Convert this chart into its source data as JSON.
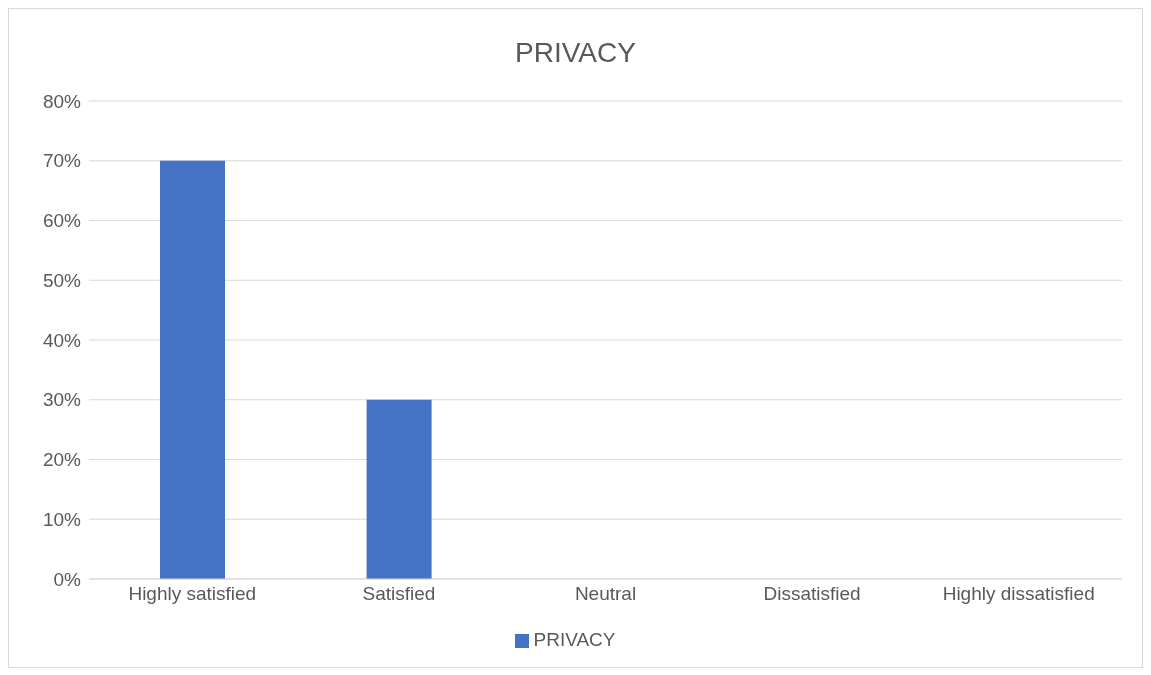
{
  "chart_data": {
    "type": "bar",
    "title": "PRIVACY",
    "categories": [
      "Highly satisfied",
      "Satisfied",
      "Neutral",
      "Dissatisfied",
      "Highly dissatisfied"
    ],
    "series": [
      {
        "name": "PRIVACY",
        "color": "#4472c4",
        "values": [
          70,
          30,
          0,
          0,
          0
        ]
      }
    ],
    "ylim": [
      0,
      80
    ],
    "yticks": [
      {
        "value": 0,
        "label": "0%"
      },
      {
        "value": 10,
        "label": "10%"
      },
      {
        "value": 20,
        "label": "20%"
      },
      {
        "value": 30,
        "label": "30%"
      },
      {
        "value": 40,
        "label": "40%"
      },
      {
        "value": 50,
        "label": "50%"
      },
      {
        "value": 60,
        "label": "60%"
      },
      {
        "value": 70,
        "label": "70%"
      },
      {
        "value": 80,
        "label": "80%"
      }
    ],
    "grid": "y",
    "legend": "bottom"
  }
}
